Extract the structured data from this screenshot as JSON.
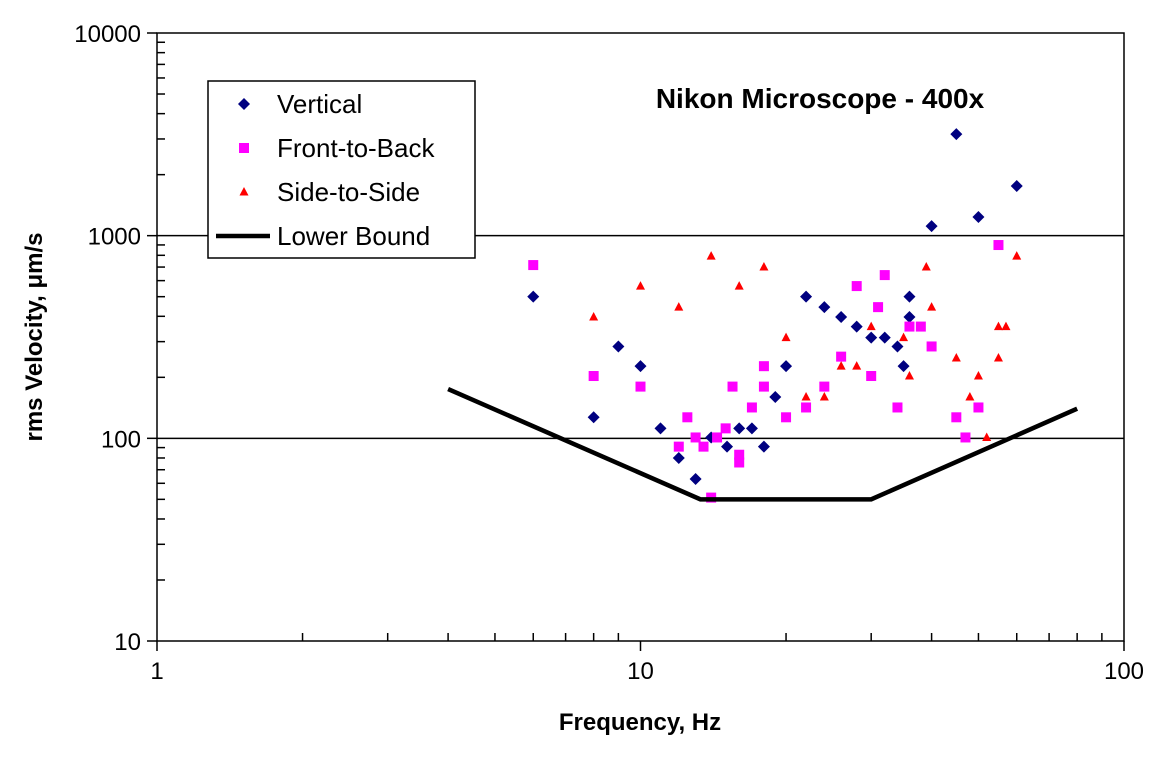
{
  "chart_data": {
    "type": "scatter",
    "title": "Nikon Microscope - 400x",
    "xlabel": "Frequency, Hz",
    "ylabel": "rms Velocity, μm/s",
    "x_scale": "log",
    "y_scale": "log",
    "xlim": [
      1,
      100
    ],
    "ylim": [
      10,
      10000
    ],
    "x_ticks": [
      "1",
      "10",
      "100"
    ],
    "y_ticks": [
      "10",
      "100",
      "1000",
      "10000"
    ],
    "grid": "horizontal major lines at 100 and 1000",
    "legend_placement": "top-left",
    "series": [
      {
        "name": "Vertical",
        "marker": "diamond",
        "color": "#000080",
        "points": [
          [
            6,
            500
          ],
          [
            8,
            127
          ],
          [
            9,
            284
          ],
          [
            10,
            227
          ],
          [
            11,
            112
          ],
          [
            12,
            80
          ],
          [
            13,
            63
          ],
          [
            14,
            101
          ],
          [
            15.1,
            91
          ],
          [
            16,
            112
          ],
          [
            17,
            112
          ],
          [
            18,
            91
          ],
          [
            19,
            160
          ],
          [
            20,
            227
          ],
          [
            22,
            500
          ],
          [
            24,
            444
          ],
          [
            26,
            397
          ],
          [
            28,
            356
          ],
          [
            30,
            314
          ],
          [
            32,
            314
          ],
          [
            34,
            284
          ],
          [
            35,
            227
          ],
          [
            36,
            500
          ],
          [
            36,
            397
          ],
          [
            40,
            1115
          ],
          [
            45,
            3170
          ],
          [
            50,
            1236
          ],
          [
            60,
            1758
          ]
        ]
      },
      {
        "name": "Front-to-Back",
        "marker": "square",
        "color": "#FF00FF",
        "points": [
          [
            6,
            716
          ],
          [
            8,
            203
          ],
          [
            10,
            180
          ],
          [
            12,
            91
          ],
          [
            12.5,
            127
          ],
          [
            13,
            101
          ],
          [
            13.5,
            91
          ],
          [
            14,
            51
          ],
          [
            14.4,
            101
          ],
          [
            15,
            112
          ],
          [
            15.5,
            180
          ],
          [
            16,
            76
          ],
          [
            16,
            83
          ],
          [
            17,
            142
          ],
          [
            18,
            227
          ],
          [
            18,
            180
          ],
          [
            20,
            127
          ],
          [
            22,
            142
          ],
          [
            24,
            180
          ],
          [
            26,
            253
          ],
          [
            28,
            564
          ],
          [
            30,
            203
          ],
          [
            31,
            444
          ],
          [
            32,
            639
          ],
          [
            34,
            142
          ],
          [
            36,
            356
          ],
          [
            38,
            356
          ],
          [
            40,
            284
          ],
          [
            45,
            127
          ],
          [
            47,
            101
          ],
          [
            50,
            142
          ],
          [
            55,
            899
          ]
        ]
      },
      {
        "name": "Side-to-Side",
        "marker": "triangle",
        "color": "#FF0000",
        "points": [
          [
            8,
            397
          ],
          [
            10,
            564
          ],
          [
            12,
            444
          ],
          [
            14,
            793
          ],
          [
            16,
            564
          ],
          [
            18,
            700
          ],
          [
            20,
            314
          ],
          [
            22,
            160
          ],
          [
            24,
            160
          ],
          [
            26,
            227
          ],
          [
            28,
            227
          ],
          [
            30,
            356
          ],
          [
            35,
            314
          ],
          [
            36,
            203
          ],
          [
            39,
            700
          ],
          [
            40,
            444
          ],
          [
            45,
            249
          ],
          [
            48,
            160
          ],
          [
            50,
            203
          ],
          [
            52,
            101
          ],
          [
            55,
            249
          ],
          [
            55,
            356
          ],
          [
            57,
            356
          ],
          [
            60,
            793
          ]
        ]
      },
      {
        "name": "Lower Bound",
        "marker": "line",
        "color": "#000000",
        "points": [
          [
            4,
            175
          ],
          [
            13.3,
            50
          ],
          [
            30,
            50
          ],
          [
            80,
            140
          ]
        ]
      }
    ]
  }
}
